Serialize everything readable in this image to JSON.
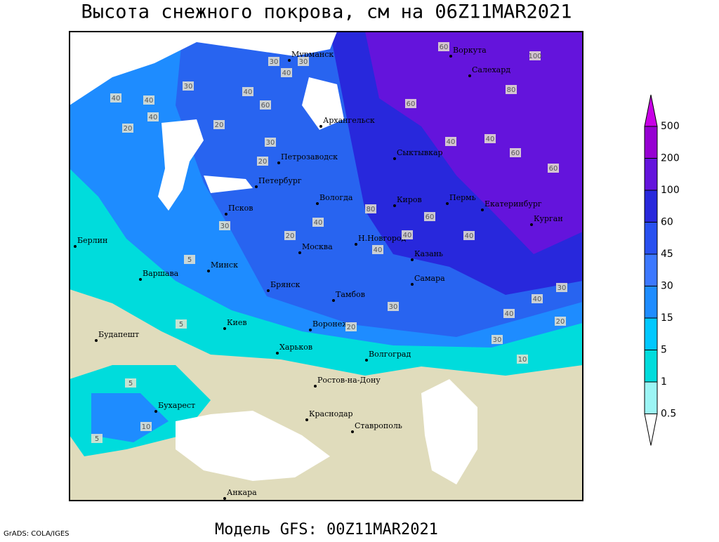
{
  "header": {
    "title": "Высота снежного покрова, см на 06Z11MAR2021"
  },
  "cities": [
    "Мурманск",
    "Воркута",
    "Салехард",
    "Архангельск",
    "Сыктывкар",
    "Петрозаводск",
    "Петербург",
    "Вологда",
    "Киров",
    "Пермь",
    "Екатеринбург",
    "Курган",
    "Псков",
    "Н.Новгород",
    "Москва",
    "Казань",
    "Минск",
    "Берлин",
    "Варшава",
    "Брянск",
    "Тамбов",
    "Самара",
    "Киев",
    "Воронеж",
    "Будапешт",
    "Харьков",
    "Волгоград",
    "Ростов-на-Дону",
    "Бухарест",
    "Краснодар",
    "Ставрополь",
    "Анкара"
  ],
  "contour_labels": [
    40,
    40,
    30,
    20,
    40,
    60,
    100,
    60,
    80,
    30,
    30,
    20,
    40,
    20,
    40,
    30,
    40,
    60,
    60,
    40,
    60,
    80,
    40,
    40,
    40,
    20,
    60,
    40,
    30,
    40,
    30,
    40,
    20,
    10,
    5,
    5,
    5,
    10,
    5,
    20,
    30,
    30
  ],
  "legend": {
    "labels": [
      "500",
      "200",
      "100",
      "60",
      "45",
      "30",
      "15",
      "5",
      "1",
      "0.5"
    ]
  },
  "footer": {
    "model": "Модель GFS: 00Z11MAR2021",
    "credit": "GrADS: COLA/IGES"
  }
}
